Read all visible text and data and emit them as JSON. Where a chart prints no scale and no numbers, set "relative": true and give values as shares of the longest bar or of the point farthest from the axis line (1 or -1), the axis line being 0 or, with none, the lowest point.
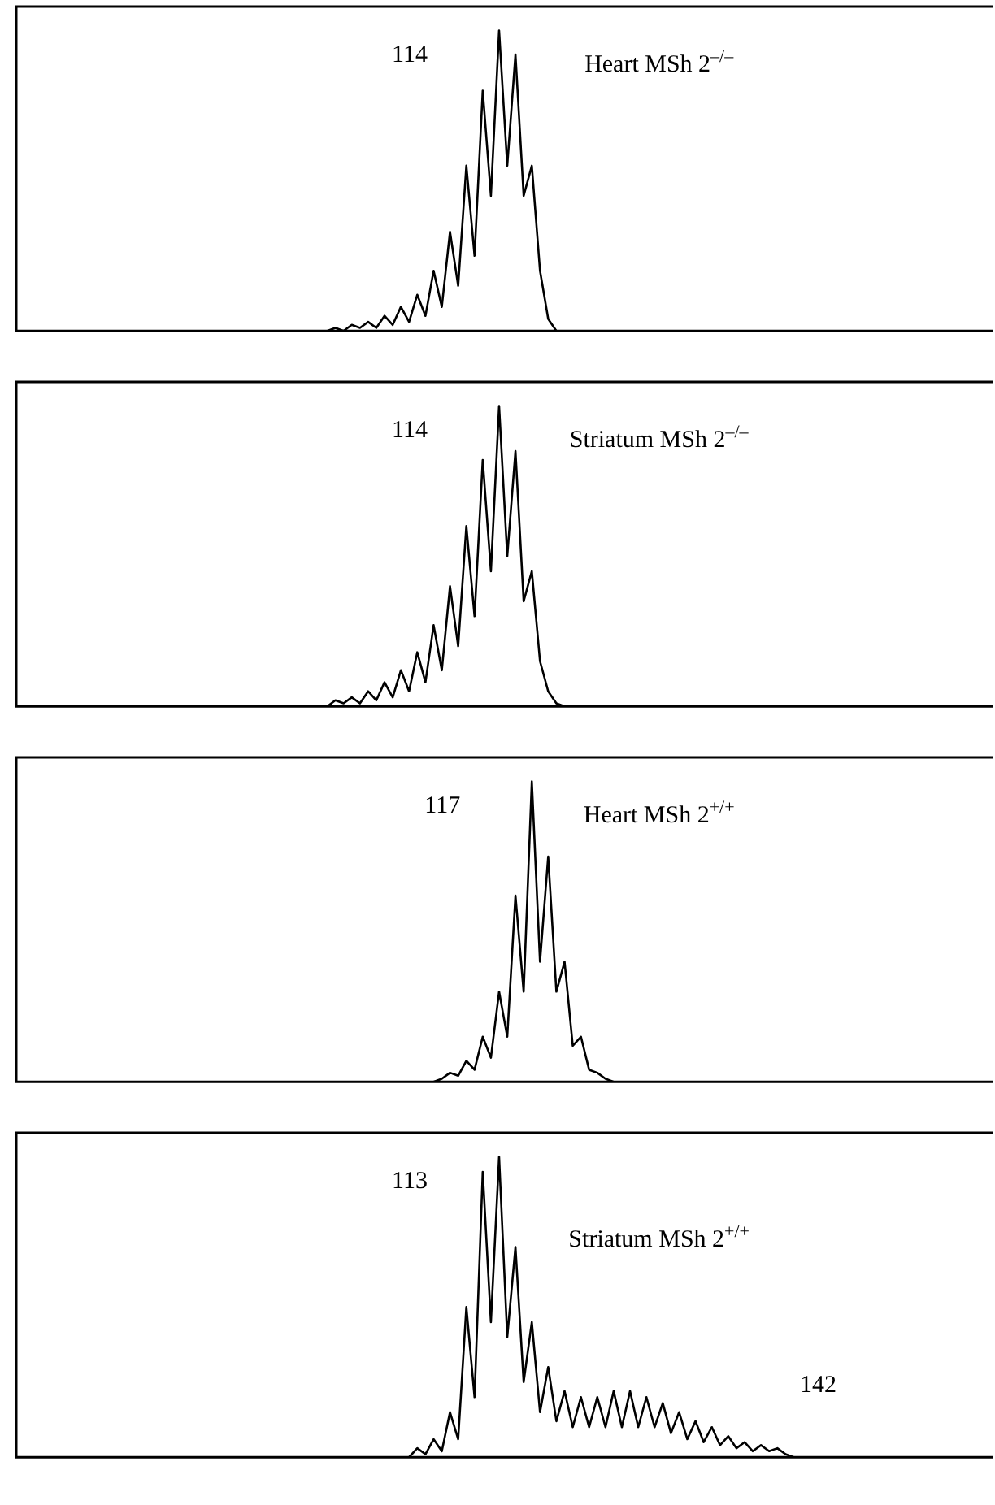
{
  "chart_data": [
    {
      "type": "line",
      "relative": true,
      "title": "Heart MSh 2$^{–/–}$",
      "annotations": [
        "114"
      ],
      "legend": false,
      "grid": false,
      "marker": "none",
      "line_style": "solid",
      "categories": [
        null,
        null,
        null,
        null,
        null,
        null,
        null,
        null,
        null,
        null,
        null,
        null,
        null,
        null,
        null,
        null,
        null,
        null,
        null,
        null,
        null,
        null,
        null,
        null,
        null,
        null,
        null,
        null,
        null,
        null,
        null,
        null,
        null,
        null,
        null,
        null,
        null,
        null,
        null,
        null,
        null,
        null,
        null,
        null,
        null,
        null,
        null,
        null,
        null,
        null,
        null,
        null,
        null,
        null,
        null,
        null,
        null,
        null,
        null,
        null,
        null,
        null,
        null,
        null,
        null,
        null,
        null,
        null,
        null,
        null,
        null,
        null,
        null,
        null,
        null,
        null,
        null,
        null,
        null,
        null,
        null,
        null,
        null,
        null,
        null,
        null,
        null,
        null,
        null,
        null,
        null,
        null,
        null,
        null,
        null,
        null,
        null,
        null,
        null,
        null,
        null,
        null,
        null,
        null,
        null,
        null,
        null,
        null,
        null,
        null,
        null,
        null,
        null,
        null,
        null,
        null,
        null,
        null,
        null,
        null
      ],
      "series": [
        {
          "color": "#000000",
          "values": [
            0,
            0,
            0,
            0,
            0,
            0,
            0,
            0,
            0,
            0,
            0,
            0,
            0,
            0,
            0,
            0,
            0,
            0,
            0,
            0,
            0,
            0,
            0,
            0,
            0,
            0,
            0,
            0,
            0,
            0,
            0,
            0,
            0,
            0,
            0,
            0,
            0,
            0,
            0,
            0.01,
            0,
            0.02,
            0.01,
            0.03,
            0.01,
            0.05,
            0.02,
            0.08,
            0.03,
            0.12,
            0.05,
            0.2,
            0.08,
            0.33,
            0.15,
            0.55,
            0.25,
            0.8,
            0.45,
            1,
            0.55,
            0.92,
            0.45,
            0.55,
            0.2,
            0.04,
            0,
            0,
            0,
            0,
            0,
            0,
            0,
            0,
            0,
            0,
            0,
            0,
            0,
            0,
            0,
            0,
            0,
            0,
            0,
            0,
            0,
            0,
            0,
            0,
            0,
            0,
            0,
            0,
            0,
            0,
            0,
            0,
            0,
            0,
            0,
            0,
            0,
            0,
            0,
            0,
            0,
            0,
            0,
            0,
            0,
            0,
            0,
            0,
            0,
            0,
            0,
            0,
            0,
            0
          ]
        }
      ]
    },
    {
      "type": "line",
      "relative": true,
      "title": "Striatum MSh 2$^{–/–}$",
      "annotations": [
        "114"
      ],
      "legend": false,
      "grid": false,
      "marker": "none",
      "line_style": "solid",
      "categories": [
        null,
        null,
        null,
        null,
        null,
        null,
        null,
        null,
        null,
        null,
        null,
        null,
        null,
        null,
        null,
        null,
        null,
        null,
        null,
        null,
        null,
        null,
        null,
        null,
        null,
        null,
        null,
        null,
        null,
        null,
        null,
        null,
        null,
        null,
        null,
        null,
        null,
        null,
        null,
        null,
        null,
        null,
        null,
        null,
        null,
        null,
        null,
        null,
        null,
        null,
        null,
        null,
        null,
        null,
        null,
        null,
        null,
        null,
        null,
        null,
        null,
        null,
        null,
        null,
        null,
        null,
        null,
        null,
        null,
        null,
        null,
        null,
        null,
        null,
        null,
        null,
        null,
        null,
        null,
        null,
        null,
        null,
        null,
        null,
        null,
        null,
        null,
        null,
        null,
        null,
        null,
        null,
        null,
        null,
        null,
        null,
        null,
        null,
        null,
        null,
        null,
        null,
        null,
        null,
        null,
        null,
        null,
        null,
        null,
        null,
        null,
        null,
        null,
        null,
        null,
        null,
        null,
        null,
        null,
        null
      ],
      "series": [
        {
          "color": "#000000",
          "values": [
            0,
            0,
            0,
            0,
            0,
            0,
            0,
            0,
            0,
            0,
            0,
            0,
            0,
            0,
            0,
            0,
            0,
            0,
            0,
            0,
            0,
            0,
            0,
            0,
            0,
            0,
            0,
            0,
            0,
            0,
            0,
            0,
            0,
            0,
            0,
            0,
            0,
            0,
            0,
            0.02,
            0.01,
            0.03,
            0.01,
            0.05,
            0.02,
            0.08,
            0.03,
            0.12,
            0.05,
            0.18,
            0.08,
            0.27,
            0.12,
            0.4,
            0.2,
            0.6,
            0.3,
            0.82,
            0.45,
            1,
            0.5,
            0.85,
            0.35,
            0.45,
            0.15,
            0.05,
            0.01,
            0,
            0,
            0,
            0,
            0,
            0,
            0,
            0,
            0,
            0,
            0,
            0,
            0,
            0,
            0,
            0,
            0,
            0,
            0,
            0,
            0,
            0,
            0,
            0,
            0,
            0,
            0,
            0,
            0,
            0,
            0,
            0,
            0,
            0,
            0,
            0,
            0,
            0,
            0,
            0,
            0,
            0,
            0,
            0,
            0,
            0,
            0,
            0,
            0,
            0,
            0,
            0,
            0
          ]
        }
      ]
    },
    {
      "type": "line",
      "relative": true,
      "title": "Heart MSh 2$^{+/+}$",
      "annotations": [
        "117"
      ],
      "legend": false,
      "grid": false,
      "marker": "none",
      "line_style": "solid",
      "categories": [
        null,
        null,
        null,
        null,
        null,
        null,
        null,
        null,
        null,
        null,
        null,
        null,
        null,
        null,
        null,
        null,
        null,
        null,
        null,
        null,
        null,
        null,
        null,
        null,
        null,
        null,
        null,
        null,
        null,
        null,
        null,
        null,
        null,
        null,
        null,
        null,
        null,
        null,
        null,
        null,
        null,
        null,
        null,
        null,
        null,
        null,
        null,
        null,
        null,
        null,
        null,
        null,
        null,
        null,
        null,
        null,
        null,
        null,
        null,
        null,
        null,
        null,
        null,
        null,
        null,
        null,
        null,
        null,
        null,
        null,
        null,
        null,
        null,
        null,
        null,
        null,
        null,
        null,
        null,
        null,
        null,
        null,
        null,
        null,
        null,
        null,
        null,
        null,
        null,
        null,
        null,
        null,
        null,
        null,
        null,
        null,
        null,
        null,
        null,
        null,
        null,
        null,
        null,
        null,
        null,
        null,
        null,
        null,
        null,
        null,
        null,
        null,
        null,
        null,
        null,
        null,
        null,
        null,
        null,
        null
      ],
      "series": [
        {
          "color": "#000000",
          "values": [
            0,
            0,
            0,
            0,
            0,
            0,
            0,
            0,
            0,
            0,
            0,
            0,
            0,
            0,
            0,
            0,
            0,
            0,
            0,
            0,
            0,
            0,
            0,
            0,
            0,
            0,
            0,
            0,
            0,
            0,
            0,
            0,
            0,
            0,
            0,
            0,
            0,
            0,
            0,
            0,
            0,
            0,
            0,
            0,
            0,
            0,
            0,
            0,
            0,
            0,
            0,
            0,
            0.01,
            0.03,
            0.02,
            0.07,
            0.04,
            0.15,
            0.08,
            0.3,
            0.15,
            0.62,
            0.3,
            1,
            0.4,
            0.75,
            0.3,
            0.4,
            0.12,
            0.15,
            0.04,
            0.03,
            0.01,
            0,
            0,
            0,
            0,
            0,
            0,
            0,
            0,
            0,
            0,
            0,
            0,
            0,
            0,
            0,
            0,
            0,
            0,
            0,
            0,
            0,
            0,
            0,
            0,
            0,
            0,
            0,
            0,
            0,
            0,
            0,
            0,
            0,
            0,
            0,
            0,
            0,
            0,
            0,
            0,
            0,
            0,
            0,
            0,
            0,
            0,
            0
          ]
        }
      ]
    },
    {
      "type": "line",
      "relative": true,
      "title": "Striatum MSh 2$^{+/+}$",
      "annotations": [
        "113",
        "142"
      ],
      "legend": false,
      "grid": false,
      "marker": "none",
      "line_style": "solid",
      "categories": [
        null,
        null,
        null,
        null,
        null,
        null,
        null,
        null,
        null,
        null,
        null,
        null,
        null,
        null,
        null,
        null,
        null,
        null,
        null,
        null,
        null,
        null,
        null,
        null,
        null,
        null,
        null,
        null,
        null,
        null,
        null,
        null,
        null,
        null,
        null,
        null,
        null,
        null,
        null,
        null,
        null,
        null,
        null,
        null,
        null,
        null,
        null,
        null,
        null,
        null,
        null,
        null,
        null,
        null,
        null,
        null,
        null,
        null,
        null,
        null,
        null,
        null,
        null,
        null,
        null,
        null,
        null,
        null,
        null,
        null,
        null,
        null,
        null,
        null,
        null,
        null,
        null,
        null,
        null,
        null,
        null,
        null,
        null,
        null,
        null,
        null,
        null,
        null,
        null,
        null,
        null,
        null,
        null,
        null,
        null,
        null,
        null,
        null,
        null,
        null,
        null,
        null,
        null,
        null,
        null,
        null,
        null,
        null,
        null,
        null,
        null,
        null,
        null,
        null,
        null,
        null,
        null,
        null,
        null,
        null
      ],
      "series": [
        {
          "color": "#000000",
          "values": [
            0,
            0,
            0,
            0,
            0,
            0,
            0,
            0,
            0,
            0,
            0,
            0,
            0,
            0,
            0,
            0,
            0,
            0,
            0,
            0,
            0,
            0,
            0,
            0,
            0,
            0,
            0,
            0,
            0,
            0,
            0,
            0,
            0,
            0,
            0,
            0,
            0,
            0,
            0,
            0,
            0,
            0,
            0,
            0,
            0,
            0,
            0,
            0,
            0,
            0.03,
            0.01,
            0.06,
            0.02,
            0.15,
            0.06,
            0.5,
            0.2,
            0.95,
            0.45,
            1,
            0.4,
            0.7,
            0.25,
            0.45,
            0.15,
            0.3,
            0.12,
            0.22,
            0.1,
            0.2,
            0.1,
            0.2,
            0.1,
            0.22,
            0.1,
            0.22,
            0.1,
            0.2,
            0.1,
            0.18,
            0.08,
            0.15,
            0.06,
            0.12,
            0.05,
            0.1,
            0.04,
            0.07,
            0.03,
            0.05,
            0.02,
            0.04,
            0.02,
            0.03,
            0.01,
            0,
            0,
            0,
            0,
            0,
            0,
            0,
            0,
            0,
            0,
            0,
            0,
            0,
            0,
            0,
            0,
            0,
            0,
            0,
            0,
            0,
            0,
            0,
            0,
            0
          ]
        }
      ]
    }
  ]
}
